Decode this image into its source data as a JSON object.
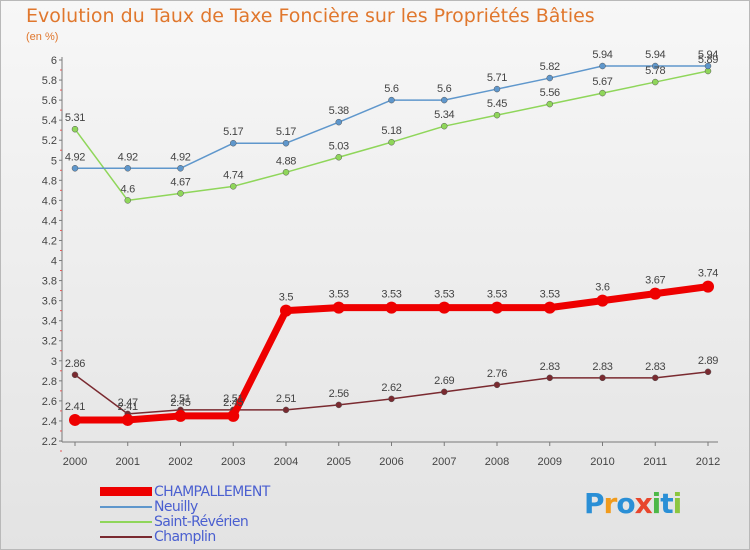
{
  "title": "Evolution du Taux de Taxe Foncière sur les Propriétés Bâties",
  "unit": "(en %)",
  "logo": {
    "text": "Proxiti",
    "colors": [
      "#2a8fd6",
      "#f19b1c",
      "#2a8fd6",
      "#e8462c",
      "#4db848",
      "#2a8fd6",
      "#8cc63f"
    ]
  },
  "chart_data": {
    "type": "line",
    "title": "Evolution du Taux de Taxe Foncière sur les Propriétés Bâties",
    "ylabel": "(en %)",
    "xlabel": "",
    "categories": [
      "2000",
      "2001",
      "2002",
      "2003",
      "2004",
      "2005",
      "2006",
      "2007",
      "2008",
      "2009",
      "2010",
      "2011",
      "2012"
    ],
    "ylim": [
      2.2,
      6
    ],
    "yticks": [
      "2.2",
      "2.4",
      "2.6",
      "2.8",
      "3",
      "3.2",
      "3.4",
      "3.6",
      "3.8",
      "4",
      "4.2",
      "4.4",
      "4.6",
      "4.8",
      "5",
      "5.2",
      "5.4",
      "5.6",
      "5.8",
      "6"
    ],
    "grid": false,
    "legend_position": "bottom-left",
    "series": [
      {
        "name": "CHAMPALLEMENT",
        "color": "#ee0000",
        "values": [
          2.41,
          2.41,
          2.45,
          2.45,
          3.5,
          3.53,
          3.53,
          3.53,
          3.53,
          3.53,
          3.6,
          3.67,
          3.74
        ],
        "labels": [
          "2.41",
          "2.41",
          "2.45",
          "2.45",
          "3.5",
          "3.53",
          "3.53",
          "3.53",
          "3.53",
          "3.53",
          "3.6",
          "3.67",
          "3.74"
        ]
      },
      {
        "name": "Neuilly",
        "color": "#5f97cc",
        "values": [
          4.92,
          4.92,
          4.92,
          5.17,
          5.17,
          5.38,
          5.6,
          5.6,
          5.71,
          5.82,
          5.94,
          5.94,
          5.94
        ],
        "labels": [
          "4.92",
          "4.92",
          "4.92",
          "5.17",
          "5.17",
          "5.38",
          "5.6",
          "5.6",
          "5.71",
          "5.82",
          "5.94",
          "5.94",
          "5.94"
        ]
      },
      {
        "name": "Saint-Révérien",
        "color": "#8fd65a",
        "values": [
          5.31,
          4.6,
          4.67,
          4.74,
          4.88,
          5.03,
          5.18,
          5.34,
          5.45,
          5.56,
          5.67,
          5.78,
          5.89
        ],
        "labels": [
          "5.31",
          "4.6",
          "4.67",
          "4.74",
          "4.88",
          "5.03",
          "5.18",
          "5.34",
          "5.45",
          "5.56",
          "5.67",
          "5.78",
          "5.89"
        ]
      },
      {
        "name": "Champlin",
        "color": "#7a2a30",
        "values": [
          2.86,
          2.47,
          2.51,
          2.51,
          2.51,
          2.56,
          2.62,
          2.69,
          2.76,
          2.83,
          2.83,
          2.83,
          2.89
        ],
        "labels": [
          "2.86",
          "2.47",
          "2.51",
          "2.51",
          "2.51",
          "2.56",
          "2.62",
          "2.69",
          "2.76",
          "2.83",
          "2.83",
          "2.83",
          "2.89"
        ]
      }
    ]
  }
}
